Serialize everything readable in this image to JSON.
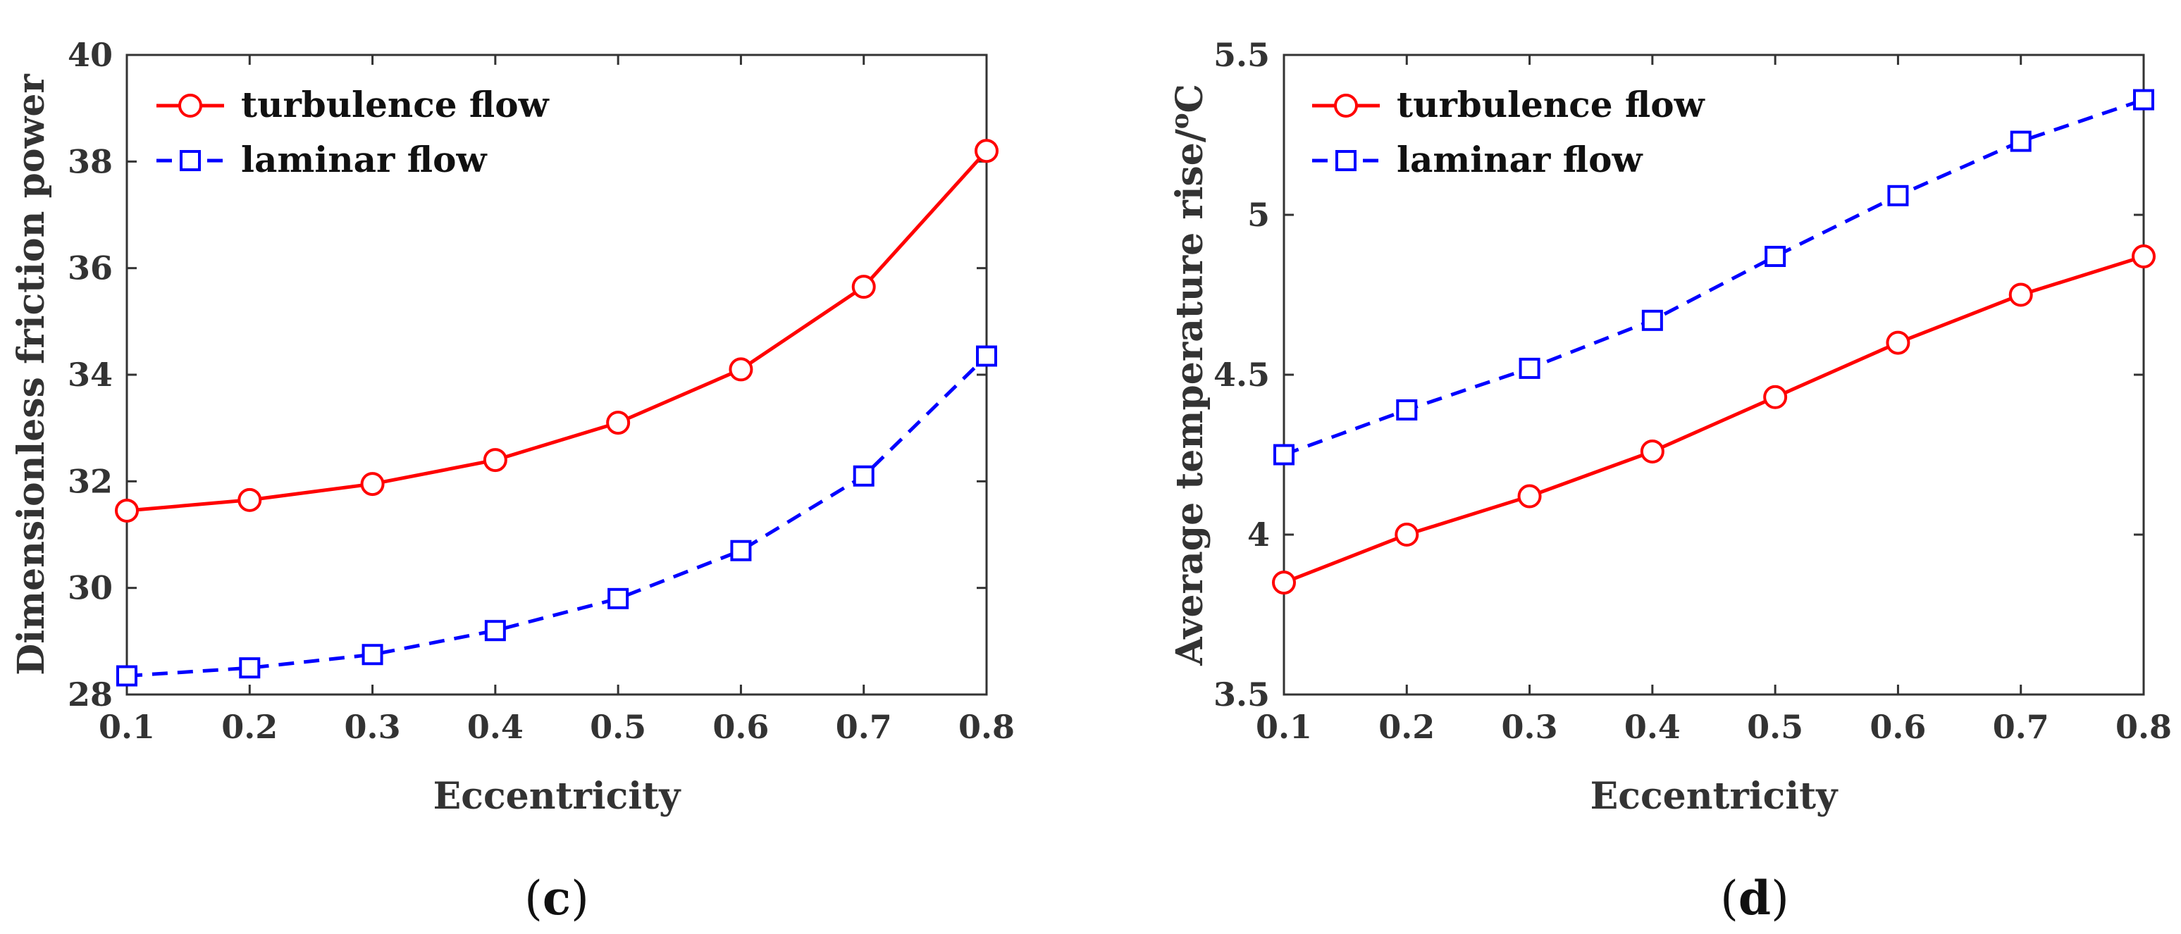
{
  "chart_data": [
    {
      "type": "line",
      "panel_label": "c",
      "xlabel": "Eccentricity",
      "ylabel": "Dimensionless friction power",
      "x": [
        0.1,
        0.2,
        0.3,
        0.4,
        0.5,
        0.6,
        0.7,
        0.8
      ],
      "xlim": [
        0.1,
        0.8
      ],
      "ylim": [
        28,
        40
      ],
      "xticks": [
        "0.1",
        "0.2",
        "0.3",
        "0.4",
        "0.5",
        "0.6",
        "0.7",
        "0.8"
      ],
      "yticks": [
        "28",
        "30",
        "32",
        "34",
        "36",
        "38",
        "40"
      ],
      "xtick_values": [
        0.1,
        0.2,
        0.3,
        0.4,
        0.5,
        0.6,
        0.7,
        0.8
      ],
      "ytick_values": [
        28,
        30,
        32,
        34,
        36,
        38,
        40
      ],
      "legend_position": "top-left",
      "series": [
        {
          "name": "turbulence flow",
          "color": "#ff0000",
          "marker": "circle",
          "linestyle": "solid",
          "values": [
            31.45,
            31.65,
            31.95,
            32.4,
            33.1,
            34.1,
            35.65,
            38.2
          ]
        },
        {
          "name": "laminar flow",
          "color": "#0000ff",
          "marker": "square",
          "linestyle": "dashed",
          "values": [
            28.35,
            28.5,
            28.75,
            29.2,
            29.8,
            30.7,
            32.1,
            34.35
          ]
        }
      ]
    },
    {
      "type": "line",
      "panel_label": "d",
      "xlabel": "Eccentricity",
      "ylabel": "Average temperature rise/",
      "ylabel_sup": "o",
      "ylabel_unit": "C",
      "x": [
        0.1,
        0.2,
        0.3,
        0.4,
        0.5,
        0.6,
        0.7,
        0.8
      ],
      "xlim": [
        0.1,
        0.8
      ],
      "ylim": [
        3.5,
        5.5
      ],
      "xticks": [
        "0.1",
        "0.2",
        "0.3",
        "0.4",
        "0.5",
        "0.6",
        "0.7",
        "0.8"
      ],
      "yticks": [
        "3.5",
        "4",
        "4.5",
        "5",
        "5.5"
      ],
      "xtick_values": [
        0.1,
        0.2,
        0.3,
        0.4,
        0.5,
        0.6,
        0.7,
        0.8
      ],
      "ytick_values": [
        3.5,
        4,
        4.5,
        5,
        5.5
      ],
      "legend_position": "top-left",
      "series": [
        {
          "name": "turbulence flow",
          "color": "#ff0000",
          "marker": "circle",
          "linestyle": "solid",
          "values": [
            3.85,
            4.0,
            4.12,
            4.26,
            4.43,
            4.6,
            4.75,
            4.87
          ]
        },
        {
          "name": "laminar flow",
          "color": "#0000ff",
          "marker": "square",
          "linestyle": "dashed",
          "values": [
            4.25,
            4.39,
            4.52,
            4.67,
            4.87,
            5.06,
            5.23,
            5.36
          ]
        }
      ]
    }
  ]
}
